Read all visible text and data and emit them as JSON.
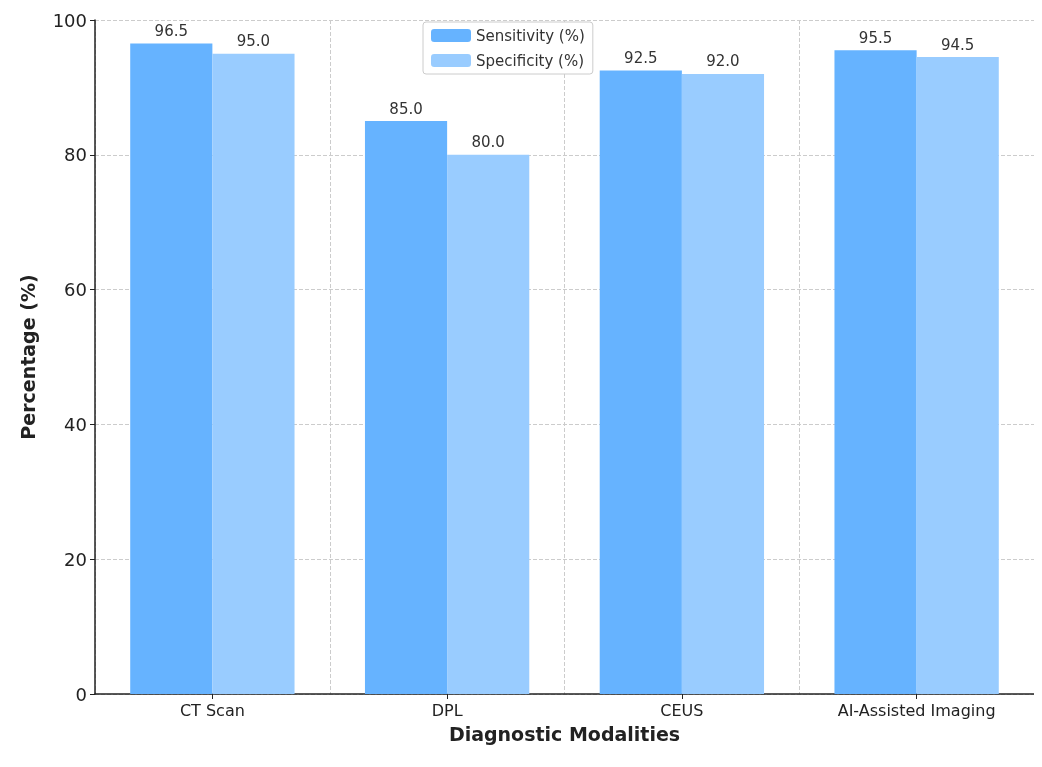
{
  "chart_data": {
    "type": "bar",
    "xlabel": "Diagnostic Modalities",
    "ylabel": "Percentage (%)",
    "categories": [
      "CT Scan",
      "DPL",
      "CEUS",
      "AI-Assisted Imaging"
    ],
    "series": [
      {
        "name": "Sensitivity (%)",
        "color": "#66b3ff",
        "values": [
          96.5,
          85.0,
          92.5,
          95.5
        ],
        "value_labels": [
          "96.5",
          "85.0",
          "92.5",
          "95.5"
        ]
      },
      {
        "name": "Specificity (%)",
        "color": "#99ccff",
        "values": [
          95.0,
          80.0,
          92.0,
          94.5
        ],
        "value_labels": [
          "95.0",
          "80.0",
          "92.0",
          "94.5"
        ]
      }
    ],
    "ylim": [
      0,
      100
    ],
    "yticks": [
      0,
      20,
      40,
      60,
      80,
      100
    ],
    "grid": true,
    "legend": "top"
  }
}
